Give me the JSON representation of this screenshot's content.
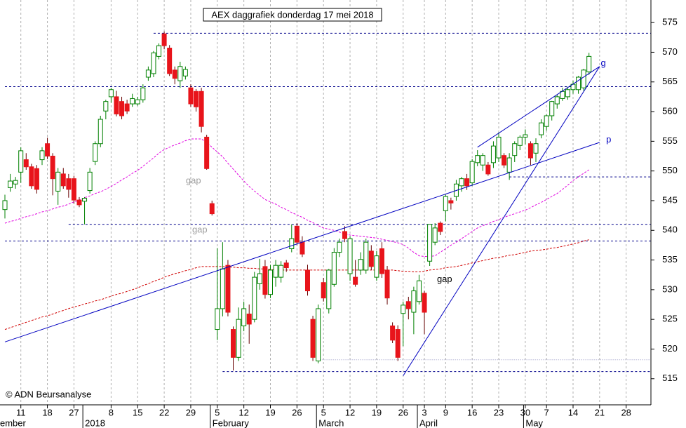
{
  "chart_data": {
    "type": "candlestick",
    "title": "AEX daggrafiek donderdag 17 mei 2018",
    "copyright": "© ADN Beursanalyse",
    "categories": [
      null,
      null,
      null,
      "11",
      null,
      null,
      null,
      null,
      "18",
      null,
      null,
      null,
      null,
      "27",
      null,
      null,
      null,
      null,
      null,
      null,
      "8",
      null,
      null,
      null,
      null,
      "15",
      null,
      null,
      null,
      null,
      "22",
      null,
      null,
      null,
      null,
      "29",
      null,
      null,
      null,
      null,
      "5",
      null,
      null,
      null,
      null,
      "12",
      null,
      null,
      null,
      null,
      "19",
      null,
      null,
      null,
      null,
      "26",
      null,
      null,
      null,
      null,
      "5",
      null,
      null,
      null,
      null,
      "12",
      null,
      null,
      null,
      null,
      "19",
      null,
      null,
      null,
      null,
      "26",
      null,
      null,
      null,
      "3",
      null,
      null,
      null,
      "9",
      null,
      null,
      null,
      null,
      "16",
      null,
      null,
      null,
      null,
      "23",
      null,
      null,
      null,
      null,
      "30",
      null,
      null,
      null,
      "7",
      null,
      null,
      null,
      null,
      "14",
      null,
      null,
      null,
      null,
      "21",
      null,
      null,
      null,
      null,
      "28",
      null,
      null,
      null,
      null
    ],
    "months": [
      "ember",
      null,
      null,
      null,
      null,
      null,
      null,
      null,
      null,
      null,
      null,
      null,
      null,
      null,
      null,
      null,
      "2018",
      null,
      null,
      null,
      null,
      null,
      null,
      null,
      null,
      null,
      null,
      null,
      null,
      null,
      null,
      null,
      null,
      null,
      null,
      null,
      null,
      null,
      null,
      null,
      "February",
      null,
      null,
      null,
      null,
      null,
      null,
      null,
      null,
      null,
      null,
      null,
      null,
      null,
      null,
      null,
      null,
      null,
      null,
      null,
      "March",
      null,
      null,
      null,
      null,
      null,
      null,
      null,
      null,
      null,
      null,
      null,
      null,
      null,
      null,
      null,
      null,
      null,
      null,
      "April",
      null,
      null,
      null,
      null,
      null,
      null,
      null,
      null,
      null,
      null,
      null,
      null,
      null,
      null,
      null,
      null,
      null,
      null,
      null,
      "May",
      null,
      null,
      null,
      null,
      null,
      null,
      null,
      null,
      null,
      null,
      null,
      null,
      null,
      null,
      null,
      null,
      null,
      null,
      null,
      null,
      null,
      null
    ],
    "open": [
      543.5,
      547.2,
      547.8,
      549.8,
      551.9,
      550.7,
      550.4,
      551.9,
      554.6,
      552.5,
      546.6,
      549.5,
      548.7,
      548.7,
      545.1,
      544.9,
      546.7,
      551.6,
      554.6,
      560.1,
      562.5,
      562.5,
      561.7,
      561.3,
      561.3,
      561.3,
      562.0,
      565.8,
      566.4,
      569.3,
      573.1,
      570.7,
      567.0,
      565.2,
      566.0,
      564.0,
      563.4,
      563.4,
      555.7,
      544.5,
      523.3,
      526.8,
      534.1,
      523.3,
      518.6,
      523.9,
      525.9,
      525.0,
      531.0,
      533.9,
      529.2,
      532.1,
      532.1,
      534.5,
      536.9,
      540.7,
      538.0,
      533.3,
      525.0,
      518.0,
      531.2,
      526.8,
      530.9,
      536.3,
      539.8,
      532.7,
      532.1,
      533.3,
      533.3,
      536.5,
      532.1,
      536.9,
      533.3,
      523.9,
      523.3,
      526.0,
      528.0,
      526.2,
      528.0,
      529.4,
      534.8,
      538.0,
      541.2,
      543.3,
      545.0,
      545.7,
      547.5,
      548.7,
      548.0,
      551.4,
      551.0,
      551.0,
      551.4,
      552.2,
      552.6,
      549.8,
      552.6,
      554.3,
      555.7,
      554.6,
      553.0,
      556.1,
      557.5,
      559.3,
      561.3,
      562.2,
      562.5,
      563.7,
      563.7,
      564.0,
      566.7,
      null,
      null,
      null,
      null,
      null,
      null,
      null,
      null,
      null,
      null,
      null
    ],
    "high": [
      546,
      549.5,
      549,
      554,
      553,
      551.2,
      551,
      554,
      555.6,
      553,
      550.5,
      550.5,
      549.5,
      549.2,
      545.6,
      545.6,
      550.5,
      555,
      559.3,
      562,
      564,
      563.5,
      562.5,
      562,
      563,
      562.5,
      564.6,
      567.6,
      570.2,
      571.5,
      573.5,
      571.2,
      567.6,
      568.4,
      567.6,
      564.6,
      563.8,
      564.0,
      556.1,
      545.0,
      537.0,
      538.0,
      535.0,
      523.8,
      527.0,
      528.0,
      527.5,
      533.0,
      535.2,
      535.0,
      534.2,
      535.0,
      534.8,
      535.0,
      541.0,
      541.2,
      539.0,
      534.2,
      525.6,
      527.5,
      532.0,
      533.5,
      537.0,
      538.6,
      540.7,
      539.0,
      535.0,
      536.3,
      538.6,
      537.5,
      536.5,
      538.0,
      534.0,
      524.5,
      524.0,
      528.0,
      528.8,
      530.5,
      532.5,
      529.8,
      541.0,
      541.2,
      541.5,
      546.0,
      545.5,
      548.5,
      549.0,
      549.5,
      552.0,
      553.5,
      553.0,
      551.5,
      555.0,
      556.5,
      553.0,
      553.0,
      555.0,
      556.0,
      557.0,
      555.0,
      555.5,
      558.7,
      559.5,
      561.8,
      562.8,
      564.0,
      564.2,
      565.2,
      566.0,
      567.2,
      569.9,
      null,
      null,
      null,
      null,
      null,
      null,
      null,
      null,
      null,
      null,
      null
    ],
    "low": [
      542,
      546.5,
      547,
      548,
      550.2,
      547,
      546.2,
      551,
      552,
      545.9,
      544.3,
      547,
      545.5,
      544.5,
      543.9,
      541,
      546.2,
      551,
      554,
      558.7,
      561.5,
      559.2,
      558.7,
      559.6,
      560.8,
      561,
      561.5,
      565.2,
      565.8,
      568.8,
      570.5,
      566.0,
      564.6,
      564.0,
      565.4,
      560.8,
      560.0,
      556.5,
      550.2,
      542.5,
      521.5,
      525.5,
      525.5,
      516.4,
      518.0,
      523.0,
      520.9,
      524.5,
      530.0,
      528.5,
      528.6,
      530.5,
      531.2,
      533.0,
      536.3,
      537.5,
      535.5,
      529.0,
      518.0,
      517.6,
      528.0,
      526.0,
      530.5,
      535.5,
      538.0,
      531.5,
      530.5,
      532.5,
      532.7,
      533.3,
      531.5,
      532.0,
      527.5,
      521.0,
      518.0,
      520.5,
      525.0,
      522.5,
      527.5,
      522.5,
      534.0,
      537.5,
      539.2,
      541.5,
      543.5,
      545.0,
      546.5,
      546.8,
      547.5,
      550.8,
      550.0,
      549.2,
      550.5,
      551.5,
      550.5,
      548.5,
      551.5,
      553.5,
      554.5,
      551.0,
      551.5,
      555.5,
      556.8,
      558.5,
      560.5,
      561.8,
      562.0,
      563.0,
      563.0,
      563.5,
      566.2,
      null,
      null,
      null,
      null,
      null,
      null,
      null,
      null,
      null,
      null,
      null
    ],
    "close": [
      545,
      548.3,
      548.4,
      553.4,
      550.7,
      547.5,
      546.9,
      553.4,
      552.5,
      548.7,
      549.8,
      547.5,
      546.9,
      545.1,
      544.3,
      545.4,
      549.8,
      554.6,
      558.7,
      561.7,
      563.7,
      559.6,
      559.3,
      560.1,
      562.2,
      562.0,
      564.0,
      567.0,
      569.9,
      571.1,
      571.1,
      566.4,
      565.6,
      567.6,
      567.1,
      561.3,
      560.8,
      557.5,
      550.4,
      542.8,
      526.8,
      533.5,
      526.2,
      518.6,
      525.0,
      526.8,
      524.2,
      532.1,
      532.7,
      529.2,
      533.3,
      534.1,
      534.1,
      533.7,
      538.6,
      538.0,
      536.0,
      529.8,
      518.6,
      526.8,
      528.6,
      533.3,
      536.3,
      538.0,
      538.6,
      538.6,
      530.9,
      535.1,
      538.0,
      533.9,
      535.7,
      532.7,
      528.6,
      521.5,
      518.6,
      527.4,
      526.8,
      529.8,
      531.5,
      526.2,
      541.0,
      540.4,
      539.8,
      545.7,
      544.6,
      547.8,
      548.7,
      547.5,
      551.6,
      552.6,
      552.6,
      549.5,
      554.2,
      555.7,
      551.0,
      552.2,
      554.6,
      555.7,
      556.1,
      552.2,
      554.6,
      558.1,
      559.3,
      561.7,
      562.5,
      563.4,
      563.7,
      564.6,
      565.8,
      567.0,
      569.3,
      null,
      null,
      null,
      null,
      null,
      null,
      null,
      null,
      null,
      null,
      null
    ],
    "up_color": "#008000",
    "down_color": "#e8141b",
    "lines": [
      {
        "color": "#e000e0",
        "values": [
          541.2,
          541.5,
          541.7,
          542.0,
          542.3,
          542.5,
          542.8,
          543.1,
          543.3,
          543.6,
          543.9,
          544.1,
          544.4,
          544.8,
          545.1,
          545.5,
          545.8,
          546.2,
          546.5,
          546.9,
          547.4,
          547.9,
          548.5,
          549.0,
          549.6,
          550.1,
          550.8,
          551.5,
          552.2,
          553.0,
          553.6,
          554.0,
          554.4,
          554.7,
          555.1,
          555.4,
          555.4,
          555.4,
          554.8,
          554.0,
          553.2,
          552.4,
          551.3,
          550.3,
          549.3,
          548.3,
          547.4,
          546.6,
          545.9,
          545.2,
          544.8,
          544.4,
          543.9,
          543.5,
          543.0,
          542.6,
          542.2,
          541.7,
          541.3,
          540.8,
          540.4,
          540.2,
          540.0,
          539.7,
          539.4,
          539.2,
          539.1,
          539.0,
          538.9,
          538.8,
          538.7,
          538.5,
          538.3,
          538.1,
          537.9,
          537.6,
          537.0,
          536.3,
          535.7,
          535.6,
          535.6,
          535.7,
          536.3,
          536.9,
          537.5,
          538.0,
          538.6,
          539.2,
          539.8,
          540.4,
          540.8,
          541.1,
          541.5,
          541.8,
          542.2,
          542.5,
          542.8,
          543.1,
          543.4,
          543.8,
          544.3,
          544.7,
          545.2,
          545.7,
          546.2,
          546.9,
          547.6,
          548.4,
          549.0,
          549.6,
          550.2,
          null,
          null,
          null,
          null,
          null,
          null,
          null,
          null,
          null,
          null,
          null
        ]
      },
      {
        "color": "#d00000",
        "values": [
          523.3,
          523.6,
          523.9,
          524.2,
          524.5,
          524.8,
          525.1,
          525.4,
          525.6,
          525.9,
          526.2,
          526.5,
          526.8,
          527.1,
          527.3,
          527.6,
          527.8,
          528.1,
          528.3,
          528.6,
          528.9,
          529.2,
          529.4,
          529.7,
          530.0,
          530.3,
          530.7,
          531.0,
          531.4,
          531.7,
          532.1,
          532.4,
          532.7,
          532.9,
          533.2,
          533.4,
          533.7,
          533.9,
          533.9,
          533.9,
          533.9,
          533.9,
          533.8,
          533.8,
          533.7,
          533.7,
          533.6,
          533.6,
          533.5,
          533.5,
          533.4,
          533.3,
          533.3,
          533.3,
          533.3,
          533.3,
          533.3,
          533.3,
          533.3,
          533.3,
          533.3,
          533.3,
          533.3,
          533.3,
          533.3,
          533.3,
          533.3,
          533.3,
          533.3,
          533.3,
          533.3,
          533.3,
          533.3,
          533.3,
          533.2,
          533.1,
          533.1,
          533.0,
          533.0,
          533.1,
          533.3,
          533.4,
          533.5,
          533.7,
          533.8,
          533.9,
          534.1,
          534.3,
          534.5,
          534.7,
          534.9,
          535.1,
          535.3,
          535.4,
          535.6,
          535.8,
          535.9,
          536.1,
          536.3,
          536.5,
          536.6,
          536.7,
          536.8,
          537.0,
          537.1,
          537.3,
          537.5,
          537.7,
          537.9,
          538.2,
          538.4,
          null,
          null,
          null,
          null,
          null,
          null,
          null,
          null,
          null,
          null,
          null
        ]
      }
    ],
    "levels": [
      {
        "value": 573.2,
        "start": 28,
        "style": "dashed"
      },
      {
        "value": 564.2,
        "start": 0,
        "style": "dashed"
      },
      {
        "value": 549.0,
        "start": 95,
        "style": "dashed"
      },
      {
        "value": 541.0,
        "start": 12,
        "style": "dashed"
      },
      {
        "value": 538.2,
        "start": 0,
        "style": "dashed"
      },
      {
        "value": 516.2,
        "start": 41,
        "style": "dashed"
      },
      {
        "value": 518.2,
        "start": 59,
        "style": "dotted"
      }
    ],
    "level_color": "#00008b",
    "trendlines": [
      {
        "x": [
          0,
          112
        ],
        "y": [
          521.2,
          554.8
        ]
      },
      {
        "x": [
          75,
          112
        ],
        "y": [
          515.5,
          567.6
        ]
      },
      {
        "x": [
          89,
          112
        ],
        "y": [
          554.0,
          567.6
        ]
      }
    ],
    "trend_color": "#0000c0",
    "annotations": [
      {
        "text": "gap",
        "x": 35.5,
        "y": 548.3,
        "color": "#a0a0a0"
      },
      {
        "text": "gap",
        "x": 36.7,
        "y": 540.0,
        "color": "#a0a0a0"
      },
      {
        "text": "gap",
        "x": 82.8,
        "y": 531.7,
        "color": "#000000"
      },
      {
        "text": "g",
        "x": 112.7,
        "y": 568.1,
        "color": "#0000c0"
      },
      {
        "text": "p",
        "x": 113.7,
        "y": 555.2,
        "color": "#0000c0"
      }
    ],
    "ylim": [
      510.6,
      578.8
    ],
    "yticks": [
      515,
      520,
      525,
      530,
      535,
      540,
      545,
      550,
      555,
      560,
      565,
      570,
      575
    ],
    "grid": true
  }
}
